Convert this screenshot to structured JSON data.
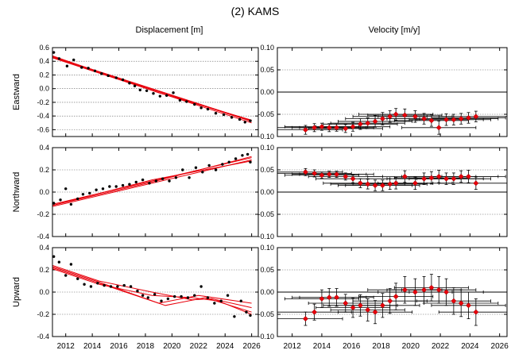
{
  "figure": {
    "title": "(2) KAMS",
    "col_titles": [
      "Displacement [m]",
      "Velocity [m/y]"
    ],
    "row_labels": [
      "Eastward",
      "Northward",
      "Upward"
    ]
  },
  "colors": {
    "model_line": "#e8000b",
    "velocity_marker": "#e8000b",
    "displacement_point": "#000000",
    "grid": "#666666"
  },
  "chart_data": [
    {
      "type": "scatter",
      "name": "Eastward displacement",
      "ylabel": "Eastward",
      "xlim": [
        2011,
        2026.5
      ],
      "ylim": [
        -0.7,
        0.6
      ],
      "xticks": [
        2012,
        2014,
        2016,
        2018,
        2020,
        2022,
        2024,
        2026
      ],
      "yticks": [
        -0.6,
        -0.4,
        -0.2,
        0.0,
        0.2,
        0.4,
        0.6
      ],
      "ytick_labels": [
        "-0.6",
        "-0.4",
        "-0.2",
        "0.0",
        "0.2",
        "0.4",
        "0.6"
      ],
      "x": [
        2011.1,
        2011.5,
        2012.1,
        2012.6,
        2013.2,
        2013.7,
        2014.2,
        2014.7,
        2015.2,
        2015.8,
        2016.3,
        2016.8,
        2017.2,
        2017.6,
        2018.1,
        2018.6,
        2019.1,
        2019.6,
        2020.1,
        2020.6,
        2021.1,
        2021.7,
        2022.2,
        2022.7,
        2023.3,
        2023.9,
        2024.5,
        2025.1,
        2025.5,
        2025.9
      ],
      "y": [
        0.53,
        0.44,
        0.33,
        0.42,
        0.31,
        0.3,
        0.26,
        0.22,
        0.19,
        0.16,
        0.13,
        0.08,
        0.04,
        -0.02,
        -0.03,
        -0.07,
        -0.11,
        -0.1,
        -0.06,
        -0.17,
        -0.19,
        -0.23,
        -0.28,
        -0.3,
        -0.36,
        -0.38,
        -0.42,
        -0.45,
        -0.49,
        -0.47
      ],
      "model": [
        {
          "x": [
            2011.0,
            2026.0
          ],
          "y": [
            0.47,
            -0.47
          ]
        },
        {
          "x": [
            2011.0,
            2026.0
          ],
          "y": [
            0.45,
            -0.5
          ]
        },
        {
          "x": [
            2011.0,
            2018.5,
            2026.0
          ],
          "y": [
            0.46,
            -0.01,
            -0.48
          ]
        },
        {
          "x": [
            2011.0,
            2019.0,
            2026.0
          ],
          "y": [
            0.48,
            -0.06,
            -0.46
          ]
        }
      ]
    },
    {
      "type": "scatter",
      "name": "Eastward velocity",
      "xlim": [
        2011,
        2026.5
      ],
      "ylim": [
        -0.1,
        0.1
      ],
      "xticks": [
        2012,
        2014,
        2016,
        2018,
        2020,
        2022,
        2024,
        2026
      ],
      "yticks": [
        -0.1,
        -0.05,
        0.0,
        0.05,
        0.1
      ],
      "ytick_labels": [
        "-0.10",
        "-0.05",
        "0.00",
        "0.05",
        "0.10"
      ],
      "x": [
        2012.9,
        2013.5,
        2014.0,
        2014.5,
        2015.0,
        2015.6,
        2016.1,
        2016.6,
        2017.1,
        2017.6,
        2018.1,
        2018.6,
        2019.0,
        2019.6,
        2020.3,
        2020.9,
        2021.4,
        2021.9,
        2022.4,
        2022.9,
        2023.4,
        2023.9,
        2024.4
      ],
      "y": [
        -0.085,
        -0.08,
        -0.078,
        -0.08,
        -0.08,
        -0.082,
        -0.078,
        -0.072,
        -0.07,
        -0.066,
        -0.06,
        -0.055,
        -0.05,
        -0.052,
        -0.055,
        -0.06,
        -0.064,
        -0.08,
        -0.062,
        -0.062,
        -0.06,
        -0.058,
        -0.055
      ],
      "yerr": [
        0.01,
        0.009,
        0.008,
        0.009,
        0.008,
        0.009,
        0.01,
        0.012,
        0.012,
        0.013,
        0.014,
        0.013,
        0.013,
        0.014,
        0.013,
        0.012,
        0.013,
        0.015,
        0.013,
        0.012,
        0.012,
        0.012,
        0.012
      ],
      "xerr": [
        2.5,
        2.5,
        2.5,
        2.5,
        2.5,
        2.5,
        2.5,
        2.5,
        2.5,
        2.5,
        2.5,
        2.5,
        2.5,
        2.5,
        2.5,
        2.5,
        2.5,
        2.5,
        2.5,
        2.5,
        2.5,
        2.5,
        2.5
      ]
    },
    {
      "type": "scatter",
      "name": "Northward displacement",
      "ylabel": "Northward",
      "xlim": [
        2011,
        2026.5
      ],
      "ylim": [
        -0.4,
        0.4
      ],
      "xticks": [
        2012,
        2014,
        2016,
        2018,
        2020,
        2022,
        2024,
        2026
      ],
      "yticks": [
        -0.4,
        -0.2,
        0.0,
        0.2,
        0.4
      ],
      "ytick_labels": [
        "-0.4",
        "-0.2",
        "0.0",
        "0.2",
        "0.4"
      ],
      "x": [
        2011.1,
        2011.6,
        2012.0,
        2012.4,
        2012.9,
        2013.3,
        2013.8,
        2014.3,
        2014.8,
        2015.3,
        2015.8,
        2016.3,
        2016.8,
        2017.3,
        2017.8,
        2018.3,
        2018.8,
        2019.3,
        2019.8,
        2020.3,
        2020.8,
        2021.3,
        2021.8,
        2022.3,
        2022.8,
        2023.3,
        2023.8,
        2024.3,
        2024.8,
        2025.3,
        2025.7,
        2025.9
      ],
      "y": [
        -0.1,
        -0.07,
        0.03,
        -0.11,
        -0.06,
        -0.02,
        -0.01,
        0.02,
        0.03,
        0.05,
        0.05,
        0.06,
        0.07,
        0.09,
        0.11,
        0.08,
        0.1,
        0.12,
        0.1,
        0.13,
        0.2,
        0.13,
        0.22,
        0.18,
        0.24,
        0.2,
        0.25,
        0.27,
        0.3,
        0.33,
        0.34,
        0.27
      ],
      "model": [
        {
          "x": [
            2011.0,
            2026.0
          ],
          "y": [
            -0.13,
            0.29
          ]
        },
        {
          "x": [
            2011.0,
            2026.0
          ],
          "y": [
            -0.11,
            0.31
          ]
        },
        {
          "x": [
            2011.0,
            2018.5,
            2026.0
          ],
          "y": [
            -0.12,
            0.11,
            0.28
          ]
        },
        {
          "x": [
            2011.0,
            2018.5,
            2026.0
          ],
          "y": [
            -0.12,
            0.09,
            0.32
          ]
        }
      ]
    },
    {
      "type": "scatter",
      "name": "Northward velocity",
      "xlim": [
        2011,
        2026.5
      ],
      "ylim": [
        -0.1,
        0.1
      ],
      "xticks": [
        2012,
        2014,
        2016,
        2018,
        2020,
        2022,
        2024,
        2026
      ],
      "yticks": [
        -0.1,
        -0.05,
        0.0,
        0.05,
        0.1
      ],
      "ytick_labels": [
        "-0.10",
        "-0.05",
        "0.00",
        "0.05",
        "0.10"
      ],
      "x": [
        2012.9,
        2013.5,
        2014.0,
        2014.5,
        2015.0,
        2015.6,
        2016.1,
        2016.6,
        2017.1,
        2017.6,
        2018.1,
        2018.6,
        2019.0,
        2019.6,
        2020.3,
        2020.9,
        2021.4,
        2021.9,
        2022.4,
        2022.9,
        2023.4,
        2023.9,
        2024.4
      ],
      "y": [
        0.045,
        0.042,
        0.038,
        0.04,
        0.04,
        0.035,
        0.03,
        0.02,
        0.018,
        0.015,
        0.015,
        0.018,
        0.02,
        0.035,
        0.02,
        0.03,
        0.032,
        0.035,
        0.03,
        0.03,
        0.035,
        0.035,
        0.02
      ],
      "yerr": [
        0.008,
        0.008,
        0.007,
        0.007,
        0.007,
        0.008,
        0.009,
        0.01,
        0.011,
        0.012,
        0.012,
        0.012,
        0.013,
        0.013,
        0.014,
        0.013,
        0.014,
        0.014,
        0.013,
        0.013,
        0.013,
        0.014,
        0.014
      ],
      "xerr": [
        2.5,
        2.5,
        2.5,
        2.5,
        2.5,
        2.5,
        2.5,
        2.5,
        2.5,
        2.5,
        2.5,
        2.5,
        2.5,
        2.5,
        2.5,
        2.5,
        2.5,
        2.5,
        2.5,
        2.5,
        2.5,
        2.5,
        2.5
      ]
    },
    {
      "type": "scatter",
      "name": "Upward displacement",
      "ylabel": "Upward",
      "xlim": [
        2011,
        2026.5
      ],
      "ylim": [
        -0.4,
        0.4
      ],
      "xticks": [
        2012,
        2014,
        2016,
        2018,
        2020,
        2022,
        2024,
        2026
      ],
      "yticks": [
        -0.4,
        -0.2,
        0.0,
        0.2,
        0.4
      ],
      "ytick_labels": [
        "-0.4",
        "-0.2",
        "0.0",
        "0.2",
        "0.4"
      ],
      "x": [
        2011.1,
        2011.5,
        2012.0,
        2012.4,
        2012.9,
        2013.4,
        2013.9,
        2014.4,
        2014.9,
        2015.4,
        2015.9,
        2016.4,
        2016.9,
        2017.4,
        2017.8,
        2018.2,
        2018.7,
        2019.2,
        2019.7,
        2020.2,
        2020.7,
        2021.2,
        2021.7,
        2022.2,
        2022.7,
        2023.2,
        2023.7,
        2024.2,
        2024.7,
        2025.2,
        2025.6,
        2025.9
      ],
      "y": [
        0.32,
        0.27,
        0.15,
        0.25,
        0.12,
        0.07,
        0.05,
        0.08,
        0.06,
        0.05,
        0.05,
        0.06,
        0.05,
        0.01,
        -0.03,
        -0.05,
        -0.02,
        -0.08,
        -0.06,
        -0.04,
        -0.04,
        -0.05,
        -0.03,
        0.05,
        -0.05,
        -0.1,
        -0.08,
        -0.03,
        -0.22,
        -0.08,
        -0.18,
        -0.21
      ],
      "model": [
        {
          "x": [
            2011.0,
            2014.5,
            2018.5,
            2021.5,
            2023.0,
            2026.0
          ],
          "y": [
            0.24,
            0.1,
            0.0,
            -0.07,
            -0.06,
            -0.14
          ]
        },
        {
          "x": [
            2011.0,
            2014.5,
            2019.5,
            2022.5,
            2026.0
          ],
          "y": [
            0.22,
            0.08,
            -0.12,
            -0.05,
            -0.18
          ]
        },
        {
          "x": [
            2011.0,
            2014.5,
            2019.0,
            2022.0,
            2026.0
          ],
          "y": [
            0.23,
            0.09,
            -0.1,
            -0.03,
            -0.1
          ]
        },
        {
          "x": [
            2011.0,
            2014.5,
            2018.5,
            2021.5,
            2023.5,
            2026.0
          ],
          "y": [
            0.21,
            0.07,
            -0.03,
            -0.05,
            -0.08,
            -0.2
          ]
        }
      ]
    },
    {
      "type": "scatter",
      "name": "Upward velocity",
      "xlim": [
        2011,
        2026.5
      ],
      "ylim": [
        -0.1,
        0.1
      ],
      "xticks": [
        2012,
        2014,
        2016,
        2018,
        2020,
        2022,
        2024,
        2026
      ],
      "yticks": [
        -0.1,
        -0.05,
        0.0,
        0.05,
        0.1
      ],
      "ytick_labels": [
        "-0.10",
        "-0.05",
        "0.00",
        "0.05",
        "0.10"
      ],
      "x": [
        2012.9,
        2013.5,
        2014.0,
        2014.5,
        2015.0,
        2015.6,
        2016.1,
        2016.6,
        2017.1,
        2017.6,
        2018.1,
        2018.6,
        2019.0,
        2019.6,
        2020.3,
        2020.9,
        2021.4,
        2021.9,
        2022.4,
        2022.9,
        2023.4,
        2023.9,
        2024.4
      ],
      "y": [
        -0.06,
        -0.045,
        -0.015,
        -0.012,
        -0.012,
        -0.025,
        -0.035,
        -0.03,
        -0.04,
        -0.045,
        -0.03,
        -0.02,
        -0.01,
        0.005,
        0.0,
        0.005,
        0.01,
        0.005,
        0.0,
        -0.02,
        -0.025,
        -0.03,
        -0.045
      ],
      "yerr": [
        0.015,
        0.018,
        0.02,
        0.02,
        0.02,
        0.02,
        0.022,
        0.024,
        0.025,
        0.026,
        0.027,
        0.028,
        0.03,
        0.03,
        0.03,
        0.03,
        0.03,
        0.03,
        0.03,
        0.03,
        0.03,
        0.03,
        0.03
      ],
      "xerr": [
        2.5,
        2.5,
        2.5,
        2.5,
        2.5,
        2.5,
        2.5,
        2.5,
        2.5,
        2.5,
        2.5,
        2.5,
        2.5,
        2.5,
        2.5,
        2.5,
        2.5,
        2.5,
        2.5,
        2.5,
        2.5,
        2.5,
        2.5
      ]
    }
  ]
}
